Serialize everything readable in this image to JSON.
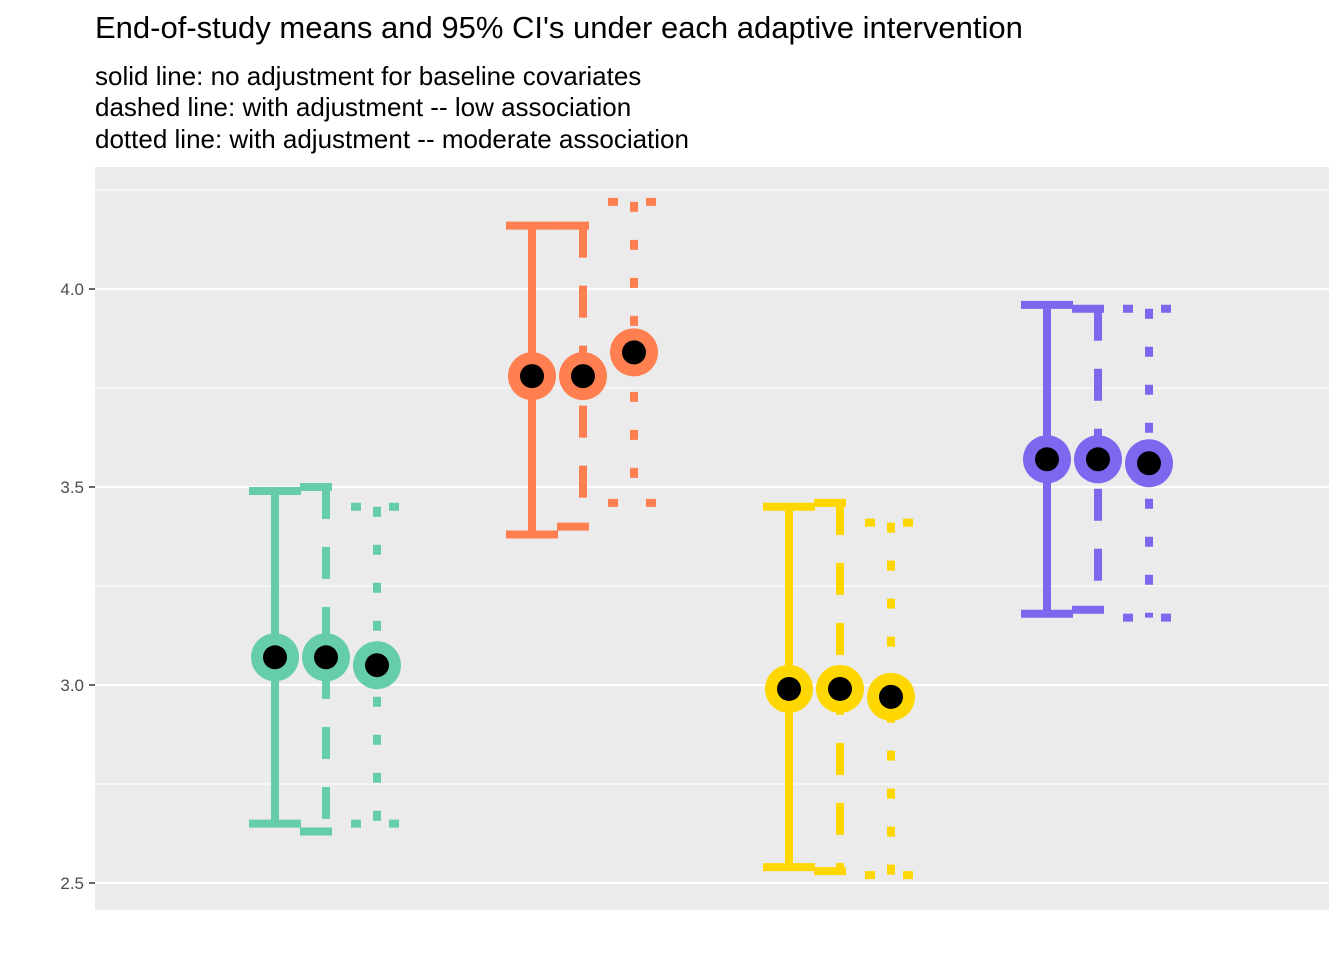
{
  "chart_data": {
    "type": "errorbar",
    "title": "End-of-study means and 95% CI's under each adaptive intervention",
    "subtitle_lines": [
      "solid line: no adjustment for baseline covariates",
      "dashed line: with adjustment -- low association",
      "dotted line: with adjustment -- moderate association"
    ],
    "xlabel": "",
    "ylabel": "",
    "ylim": [
      2.43,
      4.25
    ],
    "y_ticks": [
      2.5,
      3.0,
      3.5,
      4.0
    ],
    "y_tick_labels": [
      "2.5",
      "3.0",
      "3.5",
      "4.0"
    ],
    "grid": true,
    "legend": "none",
    "groups": [
      {
        "color": "#66CDAA",
        "estimates": [
          {
            "line_style": "solid",
            "mean": 3.07,
            "lower": 2.65,
            "upper": 3.49
          },
          {
            "line_style": "dashed",
            "mean": 3.07,
            "lower": 2.63,
            "upper": 3.5
          },
          {
            "line_style": "dotted",
            "mean": 3.05,
            "lower": 2.65,
            "upper": 3.45
          }
        ]
      },
      {
        "color": "#FF7F50",
        "estimates": [
          {
            "line_style": "solid",
            "mean": 3.78,
            "lower": 3.38,
            "upper": 4.16
          },
          {
            "line_style": "dashed",
            "mean": 3.78,
            "lower": 3.4,
            "upper": 4.16
          },
          {
            "line_style": "dotted",
            "mean": 3.84,
            "lower": 3.46,
            "upper": 4.22
          }
        ]
      },
      {
        "color": "#FFD700",
        "estimates": [
          {
            "line_style": "solid",
            "mean": 2.99,
            "lower": 2.54,
            "upper": 3.45
          },
          {
            "line_style": "dashed",
            "mean": 2.99,
            "lower": 2.53,
            "upper": 3.46
          },
          {
            "line_style": "dotted",
            "mean": 2.97,
            "lower": 2.52,
            "upper": 3.41
          }
        ]
      },
      {
        "color": "#7B68EE",
        "estimates": [
          {
            "line_style": "solid",
            "mean": 3.57,
            "lower": 3.18,
            "upper": 3.96
          },
          {
            "line_style": "dashed",
            "mean": 3.57,
            "lower": 3.19,
            "upper": 3.95
          },
          {
            "line_style": "dotted",
            "mean": 3.56,
            "lower": 3.17,
            "upper": 3.95
          }
        ]
      }
    ]
  }
}
